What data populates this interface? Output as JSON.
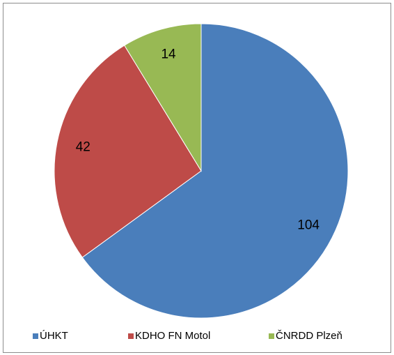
{
  "chart_data": {
    "type": "pie",
    "categories": [
      "ÚHKT",
      "KDHO FN Motol",
      "ČNRDD Plzeň"
    ],
    "values": [
      104,
      42,
      14
    ],
    "colors": [
      "#4a7ebb",
      "#be4b48",
      "#98b954"
    ],
    "legend": "bottom"
  }
}
